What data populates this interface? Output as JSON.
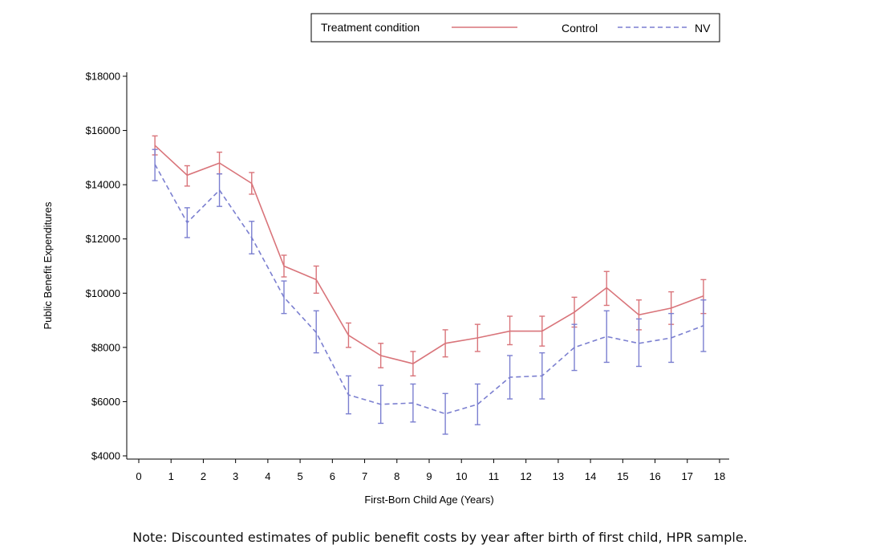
{
  "note": "Note: Discounted estimates of public benefit costs by year after birth of first child, HPR sample.",
  "legend": {
    "title": "Treatment condition",
    "entries": [
      "Control",
      "NV"
    ]
  },
  "colors": {
    "control": "#d9747a",
    "nv": "#7b7fd0"
  },
  "chart_data": {
    "type": "line",
    "xlabel": "First-Born Child Age (Years)",
    "ylabel": "Public Benefit Expenditures",
    "xlim": [
      0,
      18
    ],
    "ylim": [
      4000,
      18000
    ],
    "x_ticks": [
      "0",
      "1",
      "2",
      "3",
      "4",
      "5",
      "6",
      "7",
      "8",
      "9",
      "10",
      "11",
      "12",
      "13",
      "14",
      "15",
      "16",
      "17",
      "18"
    ],
    "y_ticks": [
      "$4000",
      "$6000",
      "$8000",
      "$10000",
      "$12000",
      "$14000",
      "$16000",
      "$18000"
    ],
    "y_tick_values": [
      4000,
      6000,
      8000,
      10000,
      12000,
      14000,
      16000,
      18000
    ],
    "legend_position": "top",
    "grid": false,
    "x": [
      0.5,
      1.5,
      2.5,
      3.5,
      4.5,
      5.5,
      6.5,
      7.5,
      8.5,
      9.5,
      10.5,
      11.5,
      12.5,
      13.5,
      14.5,
      15.5,
      16.5,
      17.5
    ],
    "series": [
      {
        "name": "Control",
        "style": "solid",
        "values": [
          15450,
          14350,
          14800,
          14050,
          11000,
          10500,
          8450,
          7700,
          7400,
          8150,
          8350,
          8600,
          8600,
          9300,
          10200,
          9200,
          9450,
          9900
        ],
        "lower": [
          15100,
          13950,
          14400,
          13650,
          10600,
          10000,
          8000,
          7250,
          6950,
          7650,
          7850,
          8100,
          8050,
          8750,
          9550,
          8650,
          8850,
          9250
        ],
        "upper": [
          15800,
          14700,
          15200,
          14450,
          11400,
          11000,
          8900,
          8150,
          7850,
          8650,
          8850,
          9150,
          9150,
          9850,
          10800,
          9750,
          10050,
          10500
        ]
      },
      {
        "name": "NV",
        "style": "dashed",
        "values": [
          14750,
          12600,
          13800,
          12050,
          9850,
          8550,
          6250,
          5900,
          5950,
          5550,
          5900,
          6900,
          6950,
          8000,
          8400,
          8150,
          8350,
          8800
        ],
        "lower": [
          14150,
          12050,
          13200,
          11450,
          9250,
          7800,
          5550,
          5200,
          5250,
          4800,
          5150,
          6100,
          6100,
          7150,
          7450,
          7300,
          7450,
          7850
        ],
        "upper": [
          15300,
          13150,
          14400,
          12650,
          10450,
          9350,
          6950,
          6600,
          6650,
          6300,
          6650,
          7700,
          7800,
          8850,
          9350,
          9050,
          9250,
          9750
        ]
      }
    ]
  }
}
